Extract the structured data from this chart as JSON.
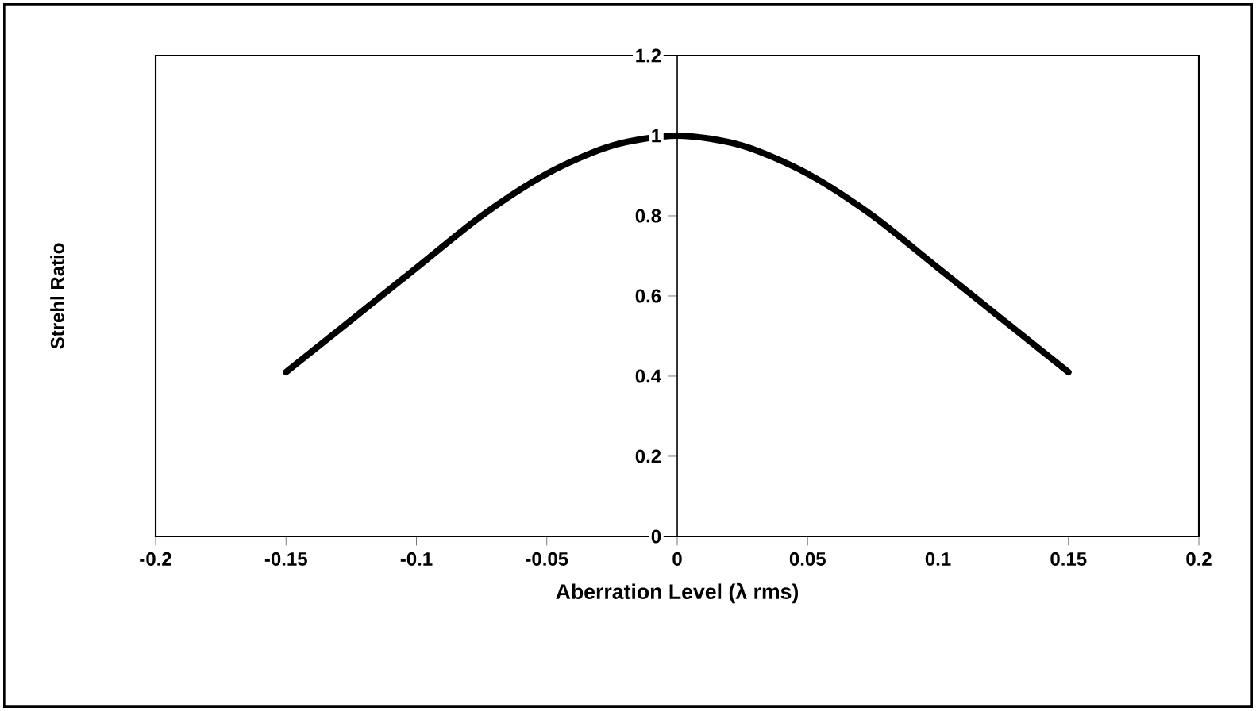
{
  "chart_data": {
    "type": "line",
    "xlabel": "Aberration Level (λ rms)",
    "ylabel": "Strehl Ratio",
    "x": [
      -0.15,
      -0.125,
      -0.1,
      -0.075,
      -0.05,
      -0.025,
      0,
      0.025,
      0.05,
      0.075,
      0.1,
      0.125,
      0.15
    ],
    "series": [
      {
        "color": "#000000",
        "values": [
          0.41,
          0.54,
          0.67,
          0.8,
          0.905,
          0.975,
          1.0,
          0.975,
          0.905,
          0.8,
          0.67,
          0.54,
          0.41
        ]
      }
    ],
    "xlim": [
      -0.2,
      0.2
    ],
    "ylim": [
      0,
      1.2
    ],
    "xticks": [
      -0.2,
      -0.15,
      -0.1,
      -0.05,
      0,
      0.05,
      0.1,
      0.15,
      0.2
    ],
    "yticks": [
      0,
      0.2,
      0.4,
      0.6,
      0.8,
      1,
      1.2
    ],
    "grid": false,
    "marker": "none",
    "line_style": "solid"
  }
}
